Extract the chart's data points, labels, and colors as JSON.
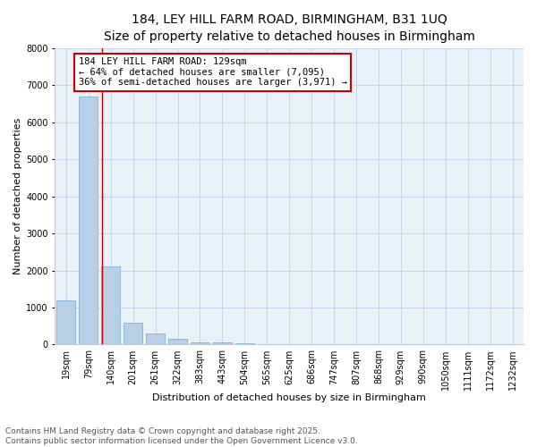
{
  "title": "184, LEY HILL FARM ROAD, BIRMINGHAM, B31 1UQ",
  "subtitle": "Size of property relative to detached houses in Birmingham",
  "xlabel": "Distribution of detached houses by size in Birmingham",
  "ylabel": "Number of detached properties",
  "categories": [
    "19sqm",
    "79sqm",
    "140sqm",
    "201sqm",
    "261sqm",
    "322sqm",
    "383sqm",
    "443sqm",
    "504sqm",
    "565sqm",
    "625sqm",
    "686sqm",
    "747sqm",
    "807sqm",
    "868sqm",
    "929sqm",
    "990sqm",
    "1050sqm",
    "1111sqm",
    "1172sqm",
    "1232sqm"
  ],
  "values": [
    1200,
    6700,
    2100,
    600,
    300,
    150,
    50,
    50,
    40,
    0,
    0,
    0,
    0,
    0,
    0,
    0,
    0,
    0,
    0,
    0,
    0
  ],
  "bar_color": "#b8cfe8",
  "bar_edge_color": "#7aaad0",
  "ylim": [
    0,
    8000
  ],
  "yticks": [
    0,
    1000,
    2000,
    3000,
    4000,
    5000,
    6000,
    7000,
    8000
  ],
  "grid_color": "#c8d8e8",
  "background_color": "#e8f0f8",
  "annotation_line1": "184 LEY HILL FARM ROAD: 129sqm",
  "annotation_line2": "← 64% of detached houses are smaller (7,095)",
  "annotation_line3": "36% of semi-detached houses are larger (3,971) →",
  "annotation_box_color": "#cc0000",
  "vline_color": "#cc0000",
  "vline_x_index": 1.62,
  "footer_text": "Contains HM Land Registry data © Crown copyright and database right 2025.\nContains public sector information licensed under the Open Government Licence v3.0.",
  "title_fontsize": 10,
  "subtitle_fontsize": 9,
  "xlabel_fontsize": 8,
  "ylabel_fontsize": 8,
  "tick_fontsize": 7,
  "annotation_fontsize": 7.5,
  "footer_fontsize": 6.5
}
